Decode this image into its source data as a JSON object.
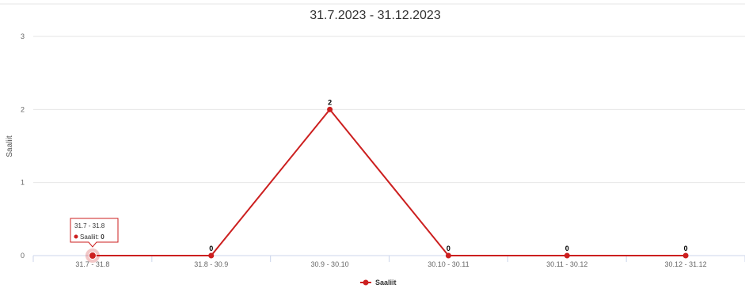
{
  "chart_data": {
    "type": "line",
    "title": "31.7.2023 - 31.12.2023",
    "ylabel": "Saaliit",
    "xlabel": "",
    "categories": [
      "31.7 - 31.8",
      "31.8 - 30.9",
      "30.9 - 30.10",
      "30.10 - 30.11",
      "30.11 - 30.12",
      "30.12 - 31.12"
    ],
    "series": [
      {
        "name": "Saaliit",
        "values": [
          0,
          0,
          2,
          0,
          0,
          0
        ]
      }
    ],
    "ylim": [
      0,
      3
    ],
    "yticks": [
      "0",
      "1",
      "2",
      "3"
    ],
    "grid": true,
    "legend_position": "bottom-center",
    "data_labels_shown": [
      false,
      true,
      true,
      true,
      true,
      true
    ],
    "color": "#cc1f1f",
    "tooltip": {
      "category": "31.7 - 31.8",
      "series_label": "Saaliit:",
      "value": "0"
    }
  }
}
